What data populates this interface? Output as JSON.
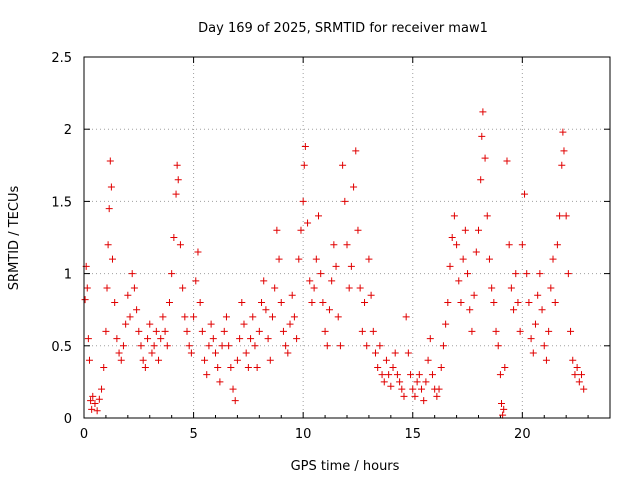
{
  "chart_data": {
    "type": "scatter",
    "title": "Day 169 of 2025, SRMTID for receiver maw1",
    "xlabel": "GPS time / hours",
    "ylabel": "SRMTID / TECUs",
    "xlim": [
      0,
      24
    ],
    "ylim": [
      0,
      2.5
    ],
    "x_ticks": [
      0,
      5,
      10,
      15,
      20
    ],
    "x_tick_labels": [
      "0",
      "5",
      "10",
      "15",
      "20"
    ],
    "y_ticks": [
      0,
      0.5,
      1,
      1.5,
      2,
      2.5
    ],
    "y_tick_labels": [
      "0",
      "0.5",
      "1",
      "1.5",
      "2",
      "2.5"
    ],
    "grid": true,
    "marker": "+",
    "series_color": "#e00000",
    "series": [
      {
        "name": "SRMTID",
        "points": [
          [
            0.05,
            0.82
          ],
          [
            0.1,
            1.05
          ],
          [
            0.15,
            0.9
          ],
          [
            0.2,
            0.55
          ],
          [
            0.25,
            0.4
          ],
          [
            0.3,
            0.12
          ],
          [
            0.35,
            0.06
          ],
          [
            0.4,
            0.15
          ],
          [
            0.5,
            0.1
          ],
          [
            0.6,
            0.05
          ],
          [
            0.7,
            0.13
          ],
          [
            0.8,
            0.2
          ],
          [
            0.9,
            0.35
          ],
          [
            1.0,
            0.6
          ],
          [
            1.05,
            0.9
          ],
          [
            1.1,
            1.2
          ],
          [
            1.15,
            1.45
          ],
          [
            1.2,
            1.78
          ],
          [
            1.25,
            1.6
          ],
          [
            1.3,
            1.1
          ],
          [
            1.4,
            0.8
          ],
          [
            1.5,
            0.55
          ],
          [
            1.6,
            0.45
          ],
          [
            1.7,
            0.4
          ],
          [
            1.8,
            0.5
          ],
          [
            1.9,
            0.65
          ],
          [
            2.0,
            0.85
          ],
          [
            2.1,
            0.7
          ],
          [
            2.2,
            1.0
          ],
          [
            2.3,
            0.9
          ],
          [
            2.4,
            0.75
          ],
          [
            2.5,
            0.6
          ],
          [
            2.6,
            0.5
          ],
          [
            2.7,
            0.4
          ],
          [
            2.8,
            0.35
          ],
          [
            2.9,
            0.55
          ],
          [
            3.0,
            0.65
          ],
          [
            3.1,
            0.45
          ],
          [
            3.2,
            0.5
          ],
          [
            3.3,
            0.6
          ],
          [
            3.4,
            0.4
          ],
          [
            3.5,
            0.55
          ],
          [
            3.6,
            0.7
          ],
          [
            3.7,
            0.6
          ],
          [
            3.8,
            0.5
          ],
          [
            3.9,
            0.8
          ],
          [
            4.0,
            1.0
          ],
          [
            4.1,
            1.25
          ],
          [
            4.2,
            1.55
          ],
          [
            4.25,
            1.75
          ],
          [
            4.3,
            1.65
          ],
          [
            4.4,
            1.2
          ],
          [
            4.5,
            0.9
          ],
          [
            4.6,
            0.7
          ],
          [
            4.7,
            0.6
          ],
          [
            4.8,
            0.5
          ],
          [
            4.9,
            0.45
          ],
          [
            5.0,
            0.7
          ],
          [
            5.1,
            0.95
          ],
          [
            5.2,
            1.15
          ],
          [
            5.3,
            0.8
          ],
          [
            5.4,
            0.6
          ],
          [
            5.5,
            0.4
          ],
          [
            5.6,
            0.3
          ],
          [
            5.7,
            0.5
          ],
          [
            5.8,
            0.65
          ],
          [
            5.9,
            0.55
          ],
          [
            6.0,
            0.45
          ],
          [
            6.1,
            0.35
          ],
          [
            6.2,
            0.25
          ],
          [
            6.3,
            0.5
          ],
          [
            6.4,
            0.6
          ],
          [
            6.5,
            0.7
          ],
          [
            6.6,
            0.5
          ],
          [
            6.7,
            0.35
          ],
          [
            6.8,
            0.2
          ],
          [
            6.9,
            0.12
          ],
          [
            7.0,
            0.4
          ],
          [
            7.1,
            0.55
          ],
          [
            7.2,
            0.8
          ],
          [
            7.3,
            0.65
          ],
          [
            7.4,
            0.45
          ],
          [
            7.5,
            0.35
          ],
          [
            7.6,
            0.55
          ],
          [
            7.7,
            0.7
          ],
          [
            7.8,
            0.5
          ],
          [
            7.9,
            0.35
          ],
          [
            8.0,
            0.6
          ],
          [
            8.1,
            0.8
          ],
          [
            8.2,
            0.95
          ],
          [
            8.3,
            0.75
          ],
          [
            8.4,
            0.55
          ],
          [
            8.5,
            0.4
          ],
          [
            8.6,
            0.7
          ],
          [
            8.7,
            0.9
          ],
          [
            8.8,
            1.3
          ],
          [
            8.9,
            1.1
          ],
          [
            9.0,
            0.8
          ],
          [
            9.1,
            0.6
          ],
          [
            9.2,
            0.5
          ],
          [
            9.3,
            0.45
          ],
          [
            9.4,
            0.65
          ],
          [
            9.5,
            0.85
          ],
          [
            9.6,
            0.7
          ],
          [
            9.7,
            0.55
          ],
          [
            9.8,
            1.1
          ],
          [
            9.9,
            1.3
          ],
          [
            10.0,
            1.5
          ],
          [
            10.05,
            1.75
          ],
          [
            10.1,
            1.88
          ],
          [
            10.2,
            1.35
          ],
          [
            10.3,
            0.95
          ],
          [
            10.4,
            0.8
          ],
          [
            10.5,
            0.9
          ],
          [
            10.6,
            1.1
          ],
          [
            10.7,
            1.4
          ],
          [
            10.8,
            1.0
          ],
          [
            10.9,
            0.8
          ],
          [
            11.0,
            0.6
          ],
          [
            11.1,
            0.5
          ],
          [
            11.2,
            0.75
          ],
          [
            11.3,
            0.95
          ],
          [
            11.4,
            1.2
          ],
          [
            11.5,
            1.05
          ],
          [
            11.6,
            0.7
          ],
          [
            11.7,
            0.5
          ],
          [
            11.8,
            1.75
          ],
          [
            11.9,
            1.5
          ],
          [
            12.0,
            1.2
          ],
          [
            12.1,
            0.9
          ],
          [
            12.2,
            1.05
          ],
          [
            12.3,
            1.6
          ],
          [
            12.4,
            1.85
          ],
          [
            12.5,
            1.3
          ],
          [
            12.6,
            0.9
          ],
          [
            12.7,
            0.6
          ],
          [
            12.8,
            0.8
          ],
          [
            12.9,
            0.5
          ],
          [
            13.0,
            1.1
          ],
          [
            13.1,
            0.85
          ],
          [
            13.2,
            0.6
          ],
          [
            13.3,
            0.45
          ],
          [
            13.4,
            0.35
          ],
          [
            13.5,
            0.5
          ],
          [
            13.6,
            0.3
          ],
          [
            13.7,
            0.25
          ],
          [
            13.8,
            0.4
          ],
          [
            13.9,
            0.3
          ],
          [
            14.0,
            0.22
          ],
          [
            14.1,
            0.35
          ],
          [
            14.2,
            0.45
          ],
          [
            14.3,
            0.3
          ],
          [
            14.4,
            0.25
          ],
          [
            14.5,
            0.2
          ],
          [
            14.6,
            0.15
          ],
          [
            14.7,
            0.7
          ],
          [
            14.8,
            0.45
          ],
          [
            14.9,
            0.3
          ],
          [
            15.0,
            0.2
          ],
          [
            15.1,
            0.15
          ],
          [
            15.2,
            0.25
          ],
          [
            15.3,
            0.3
          ],
          [
            15.4,
            0.2
          ],
          [
            15.5,
            0.12
          ],
          [
            15.6,
            0.25
          ],
          [
            15.7,
            0.4
          ],
          [
            15.8,
            0.55
          ],
          [
            15.9,
            0.3
          ],
          [
            16.0,
            0.2
          ],
          [
            16.1,
            0.15
          ],
          [
            16.2,
            0.2
          ],
          [
            16.3,
            0.35
          ],
          [
            16.4,
            0.5
          ],
          [
            16.5,
            0.65
          ],
          [
            16.6,
            0.8
          ],
          [
            16.7,
            1.05
          ],
          [
            16.8,
            1.25
          ],
          [
            16.9,
            1.4
          ],
          [
            17.0,
            1.2
          ],
          [
            17.1,
            0.95
          ],
          [
            17.2,
            0.8
          ],
          [
            17.3,
            1.1
          ],
          [
            17.4,
            1.3
          ],
          [
            17.5,
            1.0
          ],
          [
            17.6,
            0.75
          ],
          [
            17.7,
            0.6
          ],
          [
            17.8,
            0.85
          ],
          [
            17.9,
            1.15
          ],
          [
            18.0,
            1.3
          ],
          [
            18.1,
            1.65
          ],
          [
            18.15,
            1.95
          ],
          [
            18.2,
            2.12
          ],
          [
            18.3,
            1.8
          ],
          [
            18.4,
            1.4
          ],
          [
            18.5,
            1.1
          ],
          [
            18.6,
            0.9
          ],
          [
            18.7,
            0.8
          ],
          [
            18.8,
            0.6
          ],
          [
            18.9,
            0.5
          ],
          [
            19.0,
            0.3
          ],
          [
            19.05,
            0.1
          ],
          [
            19.1,
            0.02
          ],
          [
            19.15,
            0.06
          ],
          [
            19.2,
            0.35
          ],
          [
            19.3,
            1.78
          ],
          [
            19.4,
            1.2
          ],
          [
            19.5,
            0.9
          ],
          [
            19.6,
            0.75
          ],
          [
            19.7,
            1.0
          ],
          [
            19.8,
            0.8
          ],
          [
            19.9,
            0.6
          ],
          [
            20.0,
            1.2
          ],
          [
            20.1,
            1.55
          ],
          [
            20.2,
            1.0
          ],
          [
            20.3,
            0.8
          ],
          [
            20.4,
            0.55
          ],
          [
            20.5,
            0.45
          ],
          [
            20.6,
            0.65
          ],
          [
            20.7,
            0.85
          ],
          [
            20.8,
            1.0
          ],
          [
            20.9,
            0.75
          ],
          [
            21.0,
            0.5
          ],
          [
            21.1,
            0.4
          ],
          [
            21.2,
            0.6
          ],
          [
            21.3,
            0.9
          ],
          [
            21.4,
            1.1
          ],
          [
            21.5,
            0.8
          ],
          [
            21.6,
            1.2
          ],
          [
            21.7,
            1.4
          ],
          [
            21.8,
            1.75
          ],
          [
            21.85,
            1.98
          ],
          [
            21.9,
            1.85
          ],
          [
            22.0,
            1.4
          ],
          [
            22.1,
            1.0
          ],
          [
            22.2,
            0.6
          ],
          [
            22.3,
            0.4
          ],
          [
            22.4,
            0.3
          ],
          [
            22.5,
            0.35
          ],
          [
            22.6,
            0.25
          ],
          [
            22.7,
            0.3
          ],
          [
            22.8,
            0.2
          ]
        ]
      }
    ]
  }
}
